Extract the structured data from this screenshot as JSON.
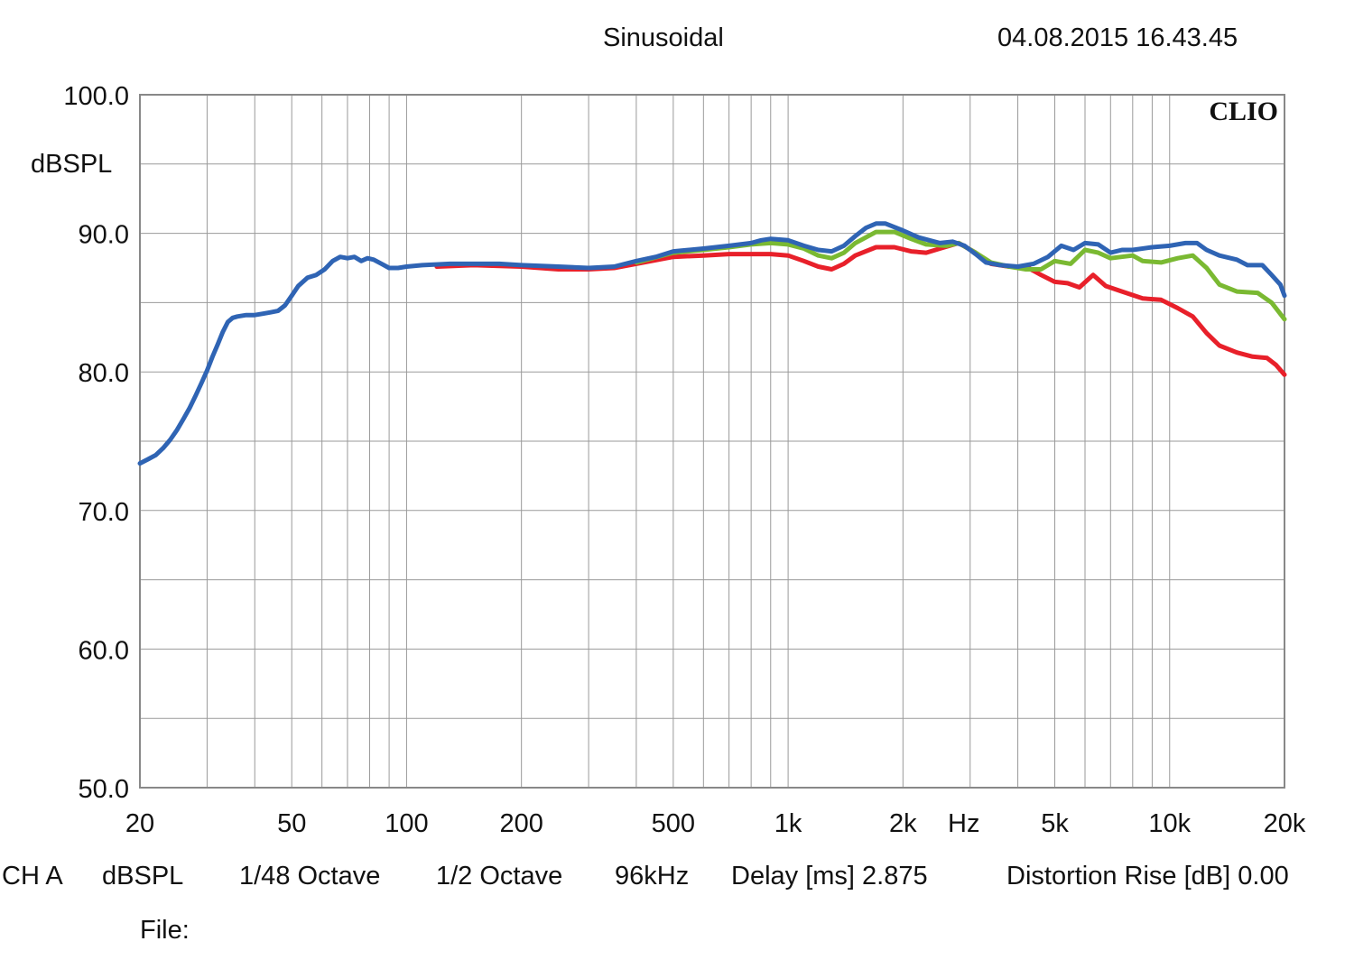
{
  "header": {
    "title": "Sinusoidal",
    "datetime": "04.08.2015 16.43.45"
  },
  "footer": {
    "channel": "CH A",
    "unit": "dBSPL",
    "resolution": "1/48 Octave",
    "smoothing": "1/2 Octave",
    "sample_rate": "96kHz",
    "delay": "Delay [ms] 2.875",
    "distortion": "Distortion Rise [dB] 0.00",
    "file_label": "File:"
  },
  "chart_data": {
    "type": "line",
    "brand": "CLIO",
    "ylabel": "dBSPL",
    "xlabel": "Hz",
    "x_scale": "log",
    "xlim": [
      20,
      20000
    ],
    "ylim": [
      50,
      100
    ],
    "grid": true,
    "y_ticks": [
      {
        "value": 100,
        "label": "100.0"
      },
      {
        "value": 90,
        "label": "90.0"
      },
      {
        "value": 80,
        "label": "80.0"
      },
      {
        "value": 70,
        "label": "70.0"
      },
      {
        "value": 60,
        "label": "60.0"
      },
      {
        "value": 50,
        "label": "50.0"
      }
    ],
    "x_ticks": [
      {
        "value": 20,
        "label": "20"
      },
      {
        "value": 50,
        "label": "50"
      },
      {
        "value": 100,
        "label": "100"
      },
      {
        "value": 200,
        "label": "200"
      },
      {
        "value": 500,
        "label": "500"
      },
      {
        "value": 1000,
        "label": "1k"
      },
      {
        "value": 2000,
        "label": "2k"
      },
      {
        "value": 5000,
        "label": "5k"
      },
      {
        "value": 10000,
        "label": "10k"
      },
      {
        "value": 20000,
        "label": "20k"
      }
    ],
    "series": [
      {
        "color": "#e8202a",
        "points": [
          [
            120,
            87.6
          ],
          [
            150,
            87.7
          ],
          [
            200,
            87.6
          ],
          [
            250,
            87.4
          ],
          [
            300,
            87.4
          ],
          [
            350,
            87.5
          ],
          [
            400,
            87.8
          ],
          [
            500,
            88.3
          ],
          [
            600,
            88.4
          ],
          [
            700,
            88.5
          ],
          [
            800,
            88.5
          ],
          [
            900,
            88.5
          ],
          [
            1000,
            88.4
          ],
          [
            1100,
            88.0
          ],
          [
            1200,
            87.6
          ],
          [
            1300,
            87.4
          ],
          [
            1400,
            87.8
          ],
          [
            1500,
            88.4
          ],
          [
            1700,
            89.0
          ],
          [
            1900,
            89.0
          ],
          [
            2100,
            88.7
          ],
          [
            2300,
            88.6
          ],
          [
            2500,
            88.9
          ],
          [
            2800,
            89.3
          ],
          [
            3100,
            88.6
          ],
          [
            3400,
            87.8
          ],
          [
            3800,
            87.6
          ],
          [
            4200,
            87.6
          ],
          [
            4600,
            87.0
          ],
          [
            5000,
            86.5
          ],
          [
            5400,
            86.4
          ],
          [
            5800,
            86.1
          ],
          [
            6300,
            87.0
          ],
          [
            6800,
            86.2
          ],
          [
            7500,
            85.8
          ],
          [
            8500,
            85.3
          ],
          [
            9500,
            85.2
          ],
          [
            10500,
            84.6
          ],
          [
            11500,
            84.0
          ],
          [
            12500,
            82.8
          ],
          [
            13500,
            81.9
          ],
          [
            15000,
            81.4
          ],
          [
            16500,
            81.1
          ],
          [
            18000,
            81.0
          ],
          [
            19000,
            80.5
          ],
          [
            20000,
            79.8
          ]
        ]
      },
      {
        "color": "#7ab932",
        "points": [
          [
            400,
            87.9
          ],
          [
            500,
            88.6
          ],
          [
            600,
            88.8
          ],
          [
            700,
            89.0
          ],
          [
            800,
            89.2
          ],
          [
            900,
            89.3
          ],
          [
            1000,
            89.2
          ],
          [
            1100,
            88.9
          ],
          [
            1200,
            88.4
          ],
          [
            1300,
            88.2
          ],
          [
            1400,
            88.6
          ],
          [
            1500,
            89.3
          ],
          [
            1700,
            90.1
          ],
          [
            1900,
            90.1
          ],
          [
            2100,
            89.6
          ],
          [
            2300,
            89.2
          ],
          [
            2600,
            89.1
          ],
          [
            2800,
            89.3
          ],
          [
            3100,
            88.6
          ],
          [
            3400,
            87.9
          ],
          [
            3800,
            87.6
          ],
          [
            4200,
            87.4
          ],
          [
            4600,
            87.4
          ],
          [
            5000,
            88.0
          ],
          [
            5500,
            87.8
          ],
          [
            6000,
            88.8
          ],
          [
            6500,
            88.6
          ],
          [
            7000,
            88.2
          ],
          [
            8000,
            88.4
          ],
          [
            8500,
            88.0
          ],
          [
            9500,
            87.9
          ],
          [
            10500,
            88.2
          ],
          [
            11500,
            88.4
          ],
          [
            12500,
            87.5
          ],
          [
            13500,
            86.3
          ],
          [
            15000,
            85.8
          ],
          [
            17000,
            85.7
          ],
          [
            18500,
            85.0
          ],
          [
            20000,
            83.8
          ]
        ]
      },
      {
        "color": "#2f64b4",
        "points": [
          [
            20,
            73.4
          ],
          [
            21,
            73.7
          ],
          [
            22,
            74.0
          ],
          [
            23,
            74.5
          ],
          [
            24,
            75.1
          ],
          [
            25,
            75.8
          ],
          [
            26,
            76.6
          ],
          [
            27,
            77.4
          ],
          [
            28,
            78.3
          ],
          [
            29,
            79.2
          ],
          [
            30,
            80.1
          ],
          [
            31,
            81.1
          ],
          [
            32,
            82.0
          ],
          [
            33,
            82.9
          ],
          [
            34,
            83.6
          ],
          [
            35,
            83.9
          ],
          [
            36,
            84.0
          ],
          [
            38,
            84.1
          ],
          [
            40,
            84.1
          ],
          [
            42,
            84.2
          ],
          [
            44,
            84.3
          ],
          [
            46,
            84.4
          ],
          [
            48,
            84.8
          ],
          [
            50,
            85.5
          ],
          [
            52,
            86.2
          ],
          [
            55,
            86.8
          ],
          [
            58,
            87.0
          ],
          [
            61,
            87.4
          ],
          [
            64,
            88.0
          ],
          [
            67,
            88.3
          ],
          [
            70,
            88.2
          ],
          [
            73,
            88.3
          ],
          [
            76,
            88.0
          ],
          [
            79,
            88.2
          ],
          [
            82,
            88.1
          ],
          [
            86,
            87.8
          ],
          [
            90,
            87.5
          ],
          [
            95,
            87.5
          ],
          [
            100,
            87.6
          ],
          [
            110,
            87.7
          ],
          [
            130,
            87.8
          ],
          [
            150,
            87.8
          ],
          [
            175,
            87.8
          ],
          [
            200,
            87.7
          ],
          [
            250,
            87.6
          ],
          [
            300,
            87.5
          ],
          [
            350,
            87.6
          ],
          [
            400,
            88.0
          ],
          [
            450,
            88.3
          ],
          [
            500,
            88.7
          ],
          [
            600,
            88.9
          ],
          [
            700,
            89.1
          ],
          [
            800,
            89.3
          ],
          [
            850,
            89.5
          ],
          [
            900,
            89.6
          ],
          [
            1000,
            89.5
          ],
          [
            1100,
            89.1
          ],
          [
            1200,
            88.8
          ],
          [
            1300,
            88.7
          ],
          [
            1400,
            89.1
          ],
          [
            1500,
            89.8
          ],
          [
            1600,
            90.4
          ],
          [
            1700,
            90.7
          ],
          [
            1800,
            90.7
          ],
          [
            2000,
            90.2
          ],
          [
            2200,
            89.7
          ],
          [
            2500,
            89.3
          ],
          [
            2700,
            89.4
          ],
          [
            2900,
            89.1
          ],
          [
            3100,
            88.5
          ],
          [
            3300,
            87.9
          ],
          [
            3600,
            87.7
          ],
          [
            4000,
            87.6
          ],
          [
            4400,
            87.8
          ],
          [
            4800,
            88.3
          ],
          [
            5200,
            89.1
          ],
          [
            5600,
            88.8
          ],
          [
            6000,
            89.3
          ],
          [
            6500,
            89.2
          ],
          [
            7000,
            88.6
          ],
          [
            7500,
            88.8
          ],
          [
            8000,
            88.8
          ],
          [
            9000,
            89.0
          ],
          [
            10000,
            89.1
          ],
          [
            11000,
            89.3
          ],
          [
            11800,
            89.3
          ],
          [
            12500,
            88.8
          ],
          [
            13500,
            88.4
          ],
          [
            15000,
            88.1
          ],
          [
            16000,
            87.7
          ],
          [
            17500,
            87.7
          ],
          [
            18500,
            87.0
          ],
          [
            19500,
            86.3
          ],
          [
            20000,
            85.5
          ]
        ]
      }
    ]
  }
}
